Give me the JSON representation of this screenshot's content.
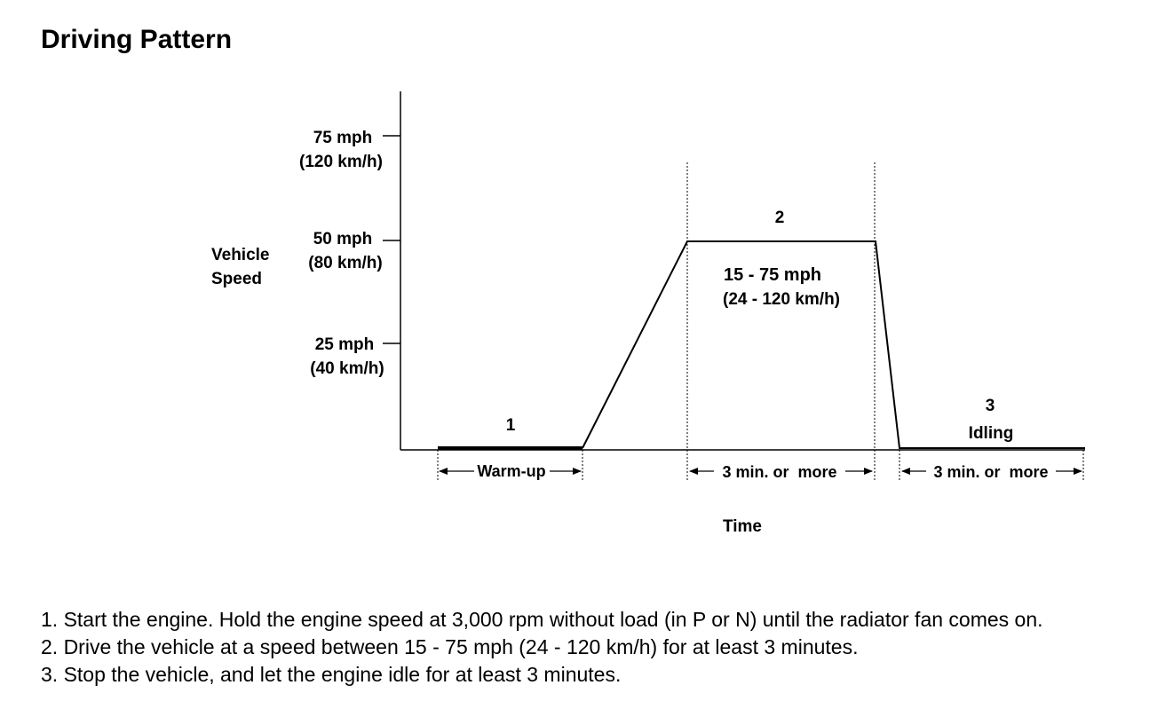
{
  "title": "Driving Pattern",
  "diagram": {
    "y_axis_label": [
      "Vehicle",
      "Speed"
    ],
    "x_axis_label": "Time",
    "y_ticks": [
      {
        "mph": "75 mph",
        "kmh": "(120 km/h)"
      },
      {
        "mph": "50 mph",
        "kmh": "(80 km/h)"
      },
      {
        "mph": "25 mph",
        "kmh": "(40 km/h)"
      }
    ],
    "phases": [
      {
        "number": "1",
        "duration": "Warm-up"
      },
      {
        "number": "2",
        "range_mph": "15 - 75 mph",
        "range_kmh": "(24 - 120 km/h)",
        "duration": "3 min. or  more"
      },
      {
        "number": "3",
        "label": "Idling",
        "duration": "3 min. or  more"
      }
    ]
  },
  "steps": [
    "1. Start the engine. Hold the engine speed at 3,000 rpm without load (in P or N) until the radiator fan comes on.",
    "2. Drive the vehicle at a speed between 15 - 75 mph (24 - 120 km/h) for at least 3 minutes.",
    "3. Stop the vehicle, and let the engine idle for at least 3 minutes."
  ]
}
